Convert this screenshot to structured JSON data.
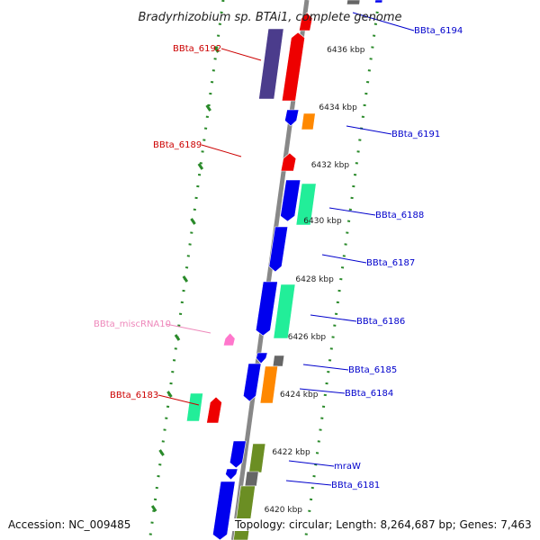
{
  "title": "Bradyrhizobium sp. BTAi1, complete genome",
  "accession": "Accession: NC_009485",
  "topology": "Topology: circular; Length: 8,264,687 bp; Genes: 7,463",
  "colors": {
    "backbone": "#888888",
    "dots": "#2a8a2a",
    "label_blue": "#0000cc",
    "label_red": "#cc0000",
    "label_pink": "#ee88bb",
    "blue": "#0000ee",
    "red": "#ee0000",
    "purple": "#4b3c8c",
    "teal": "#22ee99",
    "orange": "#ff8800",
    "gray": "#666666",
    "olive": "#6b8e23",
    "pink": "#ff77cc"
  },
  "ticks": [
    "6436 kbp",
    "6434 kbp",
    "6432 kbp",
    "6430 kbp",
    "6428 kbp",
    "6426 kbp",
    "6424 kbp",
    "6422 kbp",
    "6420 kbp"
  ],
  "gene_labels": [
    {
      "name": "BBta_6194",
      "color_key": "label_blue"
    },
    {
      "name": "BBta_6192",
      "color_key": "label_red"
    },
    {
      "name": "BBta_6191",
      "color_key": "label_blue"
    },
    {
      "name": "BBta_6189",
      "color_key": "label_red"
    },
    {
      "name": "BBta_6188",
      "color_key": "label_blue"
    },
    {
      "name": "BBta_6187",
      "color_key": "label_blue"
    },
    {
      "name": "BBta_miscRNA10",
      "color_key": "label_pink"
    },
    {
      "name": "BBta_6186",
      "color_key": "label_blue"
    },
    {
      "name": "BBta_6185",
      "color_key": "label_blue"
    },
    {
      "name": "BBta_6184",
      "color_key": "label_blue"
    },
    {
      "name": "BBta_6183",
      "color_key": "label_red"
    },
    {
      "name": "mraW",
      "color_key": "label_blue"
    },
    {
      "name": "BBta_6181",
      "color_key": "label_blue"
    }
  ]
}
